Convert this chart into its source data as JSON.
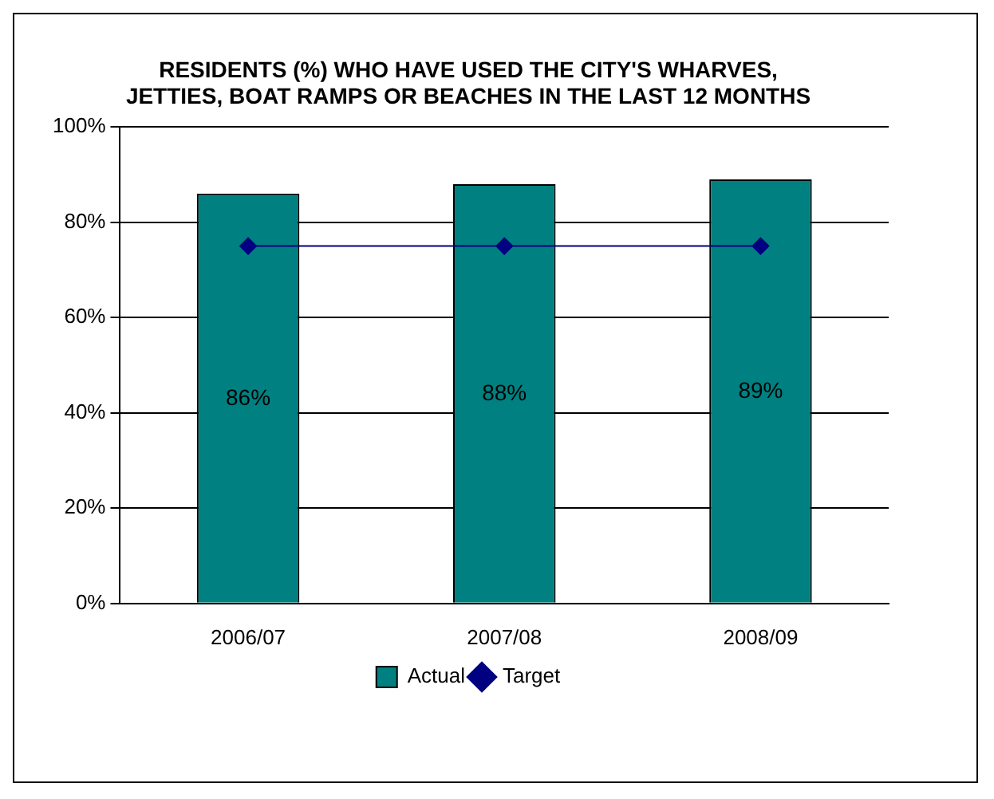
{
  "chart_data": {
    "type": "bar",
    "title": "RESIDENTS (%) WHO HAVE USED THE CITY'S WHARVES, JETTIES, BOAT RAMPS OR BEACHES IN THE LAST 12 MONTHS",
    "categories": [
      "2006/07",
      "2007/08",
      "2008/09"
    ],
    "series": [
      {
        "name": "Actual",
        "color": "#008080",
        "values": [
          86,
          88,
          89
        ],
        "value_labels": [
          "86%",
          "88%",
          "89%"
        ]
      },
      {
        "name": "Target",
        "type": "line",
        "color": "#000080",
        "values": [
          75,
          75,
          75
        ],
        "marker": "diamond"
      }
    ],
    "ylim": [
      0,
      100
    ],
    "yticks": [
      {
        "value": 0,
        "label": "0%"
      },
      {
        "value": 20,
        "label": "20%"
      },
      {
        "value": 40,
        "label": "40%"
      },
      {
        "value": 60,
        "label": "60%"
      },
      {
        "value": 80,
        "label": "80%"
      },
      {
        "value": 100,
        "label": "100%"
      }
    ],
    "grid": "y",
    "legend": "bottom"
  }
}
